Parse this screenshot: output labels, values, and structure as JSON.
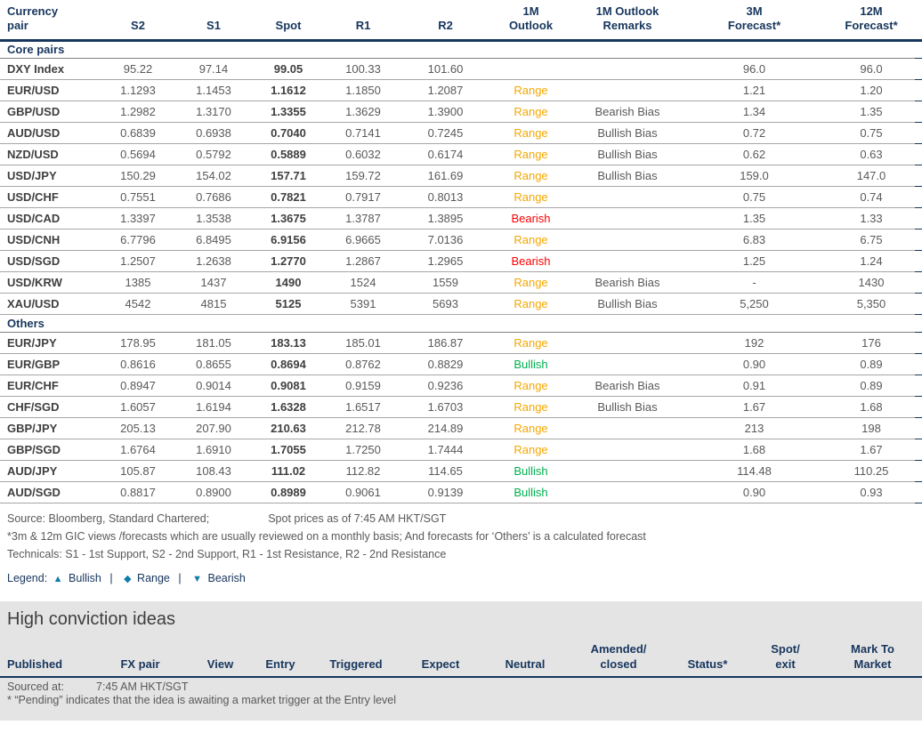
{
  "technicals_table": {
    "headers": [
      "Currency\npair",
      "S2",
      "S1",
      "Spot",
      "R1",
      "R2",
      "1M\nOutlook",
      "1M Outlook\nRemarks",
      "3M\nForecast*",
      "12M\nForecast*"
    ],
    "sections": [
      {
        "label": "Core pairs",
        "rows": [
          {
            "pair": "DXY Index",
            "s2": "95.22",
            "s1": "97.14",
            "spot": "99.05",
            "r1": "100.33",
            "r2": "101.60",
            "outlook": "",
            "remarks": "",
            "f3m": "96.0",
            "f12m": "96.0"
          },
          {
            "pair": "EUR/USD",
            "s2": "1.1293",
            "s1": "1.1453",
            "spot": "1.1612",
            "r1": "1.1850",
            "r2": "1.2087",
            "outlook": "Range",
            "remarks": "",
            "f3m": "1.21",
            "f12m": "1.20"
          },
          {
            "pair": "GBP/USD",
            "s2": "1.2982",
            "s1": "1.3170",
            "spot": "1.3355",
            "r1": "1.3629",
            "r2": "1.3900",
            "outlook": "Range",
            "remarks": "Bearish Bias",
            "f3m": "1.34",
            "f12m": "1.35"
          },
          {
            "pair": "AUD/USD",
            "s2": "0.6839",
            "s1": "0.6938",
            "spot": "0.7040",
            "r1": "0.7141",
            "r2": "0.7245",
            "outlook": "Range",
            "remarks": "Bullish Bias",
            "f3m": "0.72",
            "f12m": "0.75"
          },
          {
            "pair": "NZD/USD",
            "s2": "0.5694",
            "s1": "0.5792",
            "spot": "0.5889",
            "r1": "0.6032",
            "r2": "0.6174",
            "outlook": "Range",
            "remarks": "Bullish Bias",
            "f3m": "0.62",
            "f12m": "0.63"
          },
          {
            "pair": "USD/JPY",
            "s2": "150.29",
            "s1": "154.02",
            "spot": "157.71",
            "r1": "159.72",
            "r2": "161.69",
            "outlook": "Range",
            "remarks": "Bullish Bias",
            "f3m": "159.0",
            "f12m": "147.0"
          },
          {
            "pair": "USD/CHF",
            "s2": "0.7551",
            "s1": "0.7686",
            "spot": "0.7821",
            "r1": "0.7917",
            "r2": "0.8013",
            "outlook": "Range",
            "remarks": "",
            "f3m": "0.75",
            "f12m": "0.74"
          },
          {
            "pair": "USD/CAD",
            "s2": "1.3397",
            "s1": "1.3538",
            "spot": "1.3675",
            "r1": "1.3787",
            "r2": "1.3895",
            "outlook": "Bearish",
            "remarks": "",
            "f3m": "1.35",
            "f12m": "1.33"
          },
          {
            "pair": "USD/CNH",
            "s2": "6.7796",
            "s1": "6.8495",
            "spot": "6.9156",
            "r1": "6.9665",
            "r2": "7.0136",
            "outlook": "Range",
            "remarks": "",
            "f3m": "6.83",
            "f12m": "6.75"
          },
          {
            "pair": "USD/SGD",
            "s2": "1.2507",
            "s1": "1.2638",
            "spot": "1.2770",
            "r1": "1.2867",
            "r2": "1.2965",
            "outlook": "Bearish",
            "remarks": "",
            "f3m": "1.25",
            "f12m": "1.24"
          },
          {
            "pair": "USD/KRW",
            "s2": "1385",
            "s1": "1437",
            "spot": "1490",
            "r1": "1524",
            "r2": "1559",
            "outlook": "Range",
            "remarks": "Bearish Bias",
            "f3m": "-",
            "f12m": "1430"
          },
          {
            "pair": "XAU/USD",
            "s2": "4542",
            "s1": "4815",
            "spot": "5125",
            "r1": "5391",
            "r2": "5693",
            "outlook": "Range",
            "remarks": "Bullish Bias",
            "f3m": "5,250",
            "f12m": "5,350"
          }
        ]
      },
      {
        "label": "Others",
        "rows": [
          {
            "pair": "EUR/JPY",
            "s2": "178.95",
            "s1": "181.05",
            "spot": "183.13",
            "r1": "185.01",
            "r2": "186.87",
            "outlook": "Range",
            "remarks": "",
            "f3m": "192",
            "f12m": "176"
          },
          {
            "pair": "EUR/GBP",
            "s2": "0.8616",
            "s1": "0.8655",
            "spot": "0.8694",
            "r1": "0.8762",
            "r2": "0.8829",
            "outlook": "Bullish",
            "remarks": "",
            "f3m": "0.90",
            "f12m": "0.89"
          },
          {
            "pair": "EUR/CHF",
            "s2": "0.8947",
            "s1": "0.9014",
            "spot": "0.9081",
            "r1": "0.9159",
            "r2": "0.9236",
            "outlook": "Range",
            "remarks": "Bearish Bias",
            "f3m": "0.91",
            "f12m": "0.89"
          },
          {
            "pair": "CHF/SGD",
            "s2": "1.6057",
            "s1": "1.6194",
            "spot": "1.6328",
            "r1": "1.6517",
            "r2": "1.6703",
            "outlook": "Range",
            "remarks": "Bullish Bias",
            "f3m": "1.67",
            "f12m": "1.68"
          },
          {
            "pair": "GBP/JPY",
            "s2": "205.13",
            "s1": "207.90",
            "spot": "210.63",
            "r1": "212.78",
            "r2": "214.89",
            "outlook": "Range",
            "remarks": "",
            "f3m": "213",
            "f12m": "198"
          },
          {
            "pair": "GBP/SGD",
            "s2": "1.6764",
            "s1": "1.6910",
            "spot": "1.7055",
            "r1": "1.7250",
            "r2": "1.7444",
            "outlook": "Range",
            "remarks": "",
            "f3m": "1.68",
            "f12m": "1.67"
          },
          {
            "pair": "AUD/JPY",
            "s2": "105.87",
            "s1": "108.43",
            "spot": "111.02",
            "r1": "112.82",
            "r2": "114.65",
            "outlook": "Bullish",
            "remarks": "",
            "f3m": "114.48",
            "f12m": "110.25"
          },
          {
            "pair": "AUD/SGD",
            "s2": "0.8817",
            "s1": "0.8900",
            "spot": "0.8989",
            "r1": "0.9061",
            "r2": "0.9139",
            "outlook": "Bullish",
            "remarks": "",
            "f3m": "0.90",
            "f12m": "0.93"
          }
        ]
      }
    ]
  },
  "footnotes": {
    "source": "Source: Bloomberg, Standard Chartered;",
    "spot_asof": "Spot prices as of 7:45 AM HKT/SGT",
    "forecast_note": "*3m & 12m GIC views /forecasts which are usually reviewed on a monthly basis; And forecasts for ‘Others’ is a calculated forecast",
    "technicals_note": "Technicals: S1 - 1st Support, S2 - 2nd Support, R1 - 1st Resistance, R2 - 2nd Resistance",
    "legend": {
      "label": "Legend:",
      "separator": "|",
      "items": [
        {
          "icon": "triangle-up-icon",
          "glyph": "▲",
          "label": "Bullish"
        },
        {
          "icon": "diamond-icon",
          "glyph": "◆",
          "label": "Range"
        },
        {
          "icon": "triangle-down-icon",
          "glyph": "▼",
          "label": "Bearish"
        }
      ]
    }
  },
  "high_conviction": {
    "title": "High conviction ideas",
    "headers": [
      "Published",
      "FX pair",
      "View",
      "Entry",
      "Triggered",
      "Expect",
      "Neutral",
      "Amended/\nclosed",
      "Status*",
      "Spot/\nexit",
      "Mark To\nMarket"
    ],
    "sourced_label": "Sourced at:",
    "sourced_value": "7:45 AM HKT/SGT",
    "pending_note": "* “Pending” indicates that the idea is awaiting a market trigger at the Entry level"
  },
  "colors": {
    "navy": "#17365d",
    "bullish_green": "#00b050",
    "bearish_red": "#fe0000",
    "range_amber": "#f5a800",
    "legend_teal": "#0f7cac",
    "section_background_grey": "#e4e4e4"
  }
}
